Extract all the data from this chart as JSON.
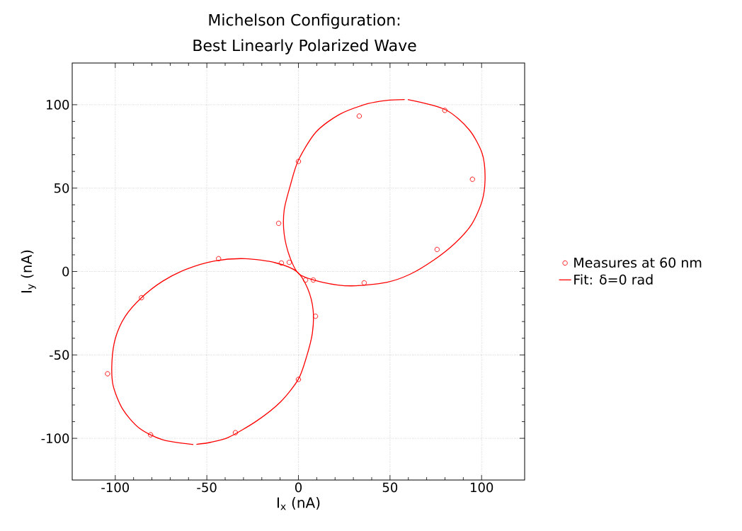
{
  "chart_data": {
    "type": "scatter",
    "title": "Michelson Configuration:",
    "subtitle": "Best Linearly Polarized Wave",
    "xlabel": "I$_{x}$ (nA)",
    "ylabel": "I$_{y}$ (nA)",
    "xlim": [
      -123.5,
      123.5
    ],
    "ylim": [
      -125,
      125
    ],
    "xticks": [
      -100,
      -50,
      0,
      50,
      100
    ],
    "yticks": [
      -100,
      -50,
      0,
      50,
      100
    ],
    "grid": true,
    "legend": "right",
    "series": [
      {
        "name": "Measures at 60 nm",
        "type": "scatter",
        "color": "#ff0000",
        "marker": "circle",
        "x": [
          33.2,
          79.9,
          95.0,
          0,
          -10.8,
          75.7,
          35.9,
          8.1,
          3.9,
          -5.0,
          -9.3,
          9.3,
          0,
          -34.4,
          -80.7,
          -104.2,
          -85.7,
          -43.6
        ],
        "values": [
          93.2,
          96.6,
          55.3,
          66.0,
          28.9,
          13.2,
          -6.8,
          -5.1,
          -5.1,
          5.5,
          5.1,
          -26.8,
          -64.7,
          -96.6,
          -97.9,
          -61.3,
          -15.7,
          7.7
        ]
      },
      {
        "name": "Fit: δ=0 rad",
        "type": "line",
        "color": "#ff0000",
        "marker": "none",
        "line_style": "solid",
        "x": [
          59.7,
          80.3,
          93.2,
          100.3,
          101.9,
          100.3,
          94.5,
          85.4,
          73.9,
          61.0,
          48.1,
          28.8,
          13.4,
          0.5,
          -4.6,
          -7.8,
          -7.8,
          -4.6,
          -0.1,
          9.5,
          22.4,
          37.8,
          48.0,
          58.0
        ],
        "values": [
          103.1,
          97.0,
          85.0,
          70.8,
          56.6,
          42.4,
          28.2,
          16.9,
          6.9,
          -1.6,
          -6.5,
          -8.6,
          -6.5,
          -1.6,
          8.4,
          22.6,
          36.7,
          50.9,
          66.5,
          83.5,
          94.2,
          100.6,
          102.6,
          103.1
        ]
      },
      {
        "type": "line",
        "color": "#ff0000",
        "marker": "none",
        "line_style": "solid",
        "x": [
          -57.4,
          -74.1,
          -87.0,
          -96.0,
          -101.2,
          -101.8,
          -99.9,
          -94.7,
          -85.7,
          -74.1,
          -61.3,
          -45.8,
          -29.1,
          -12.4,
          -0.8,
          5.0,
          8.0,
          7.6,
          4.4,
          -0.1,
          -9.8,
          -22.7,
          -38.1,
          -48.0,
          -55.7
        ],
        "values": [
          -103.7,
          -100.9,
          -93.8,
          -82.4,
          -68.2,
          -54.0,
          -39.9,
          -27.1,
          -15.7,
          -5.8,
          1.3,
          6.3,
          7.7,
          5.2,
          -0.1,
          -10.1,
          -22.9,
          -37.0,
          -51.2,
          -64.7,
          -78.2,
          -89.5,
          -99.4,
          -102.4,
          -103.6
        ]
      }
    ]
  }
}
